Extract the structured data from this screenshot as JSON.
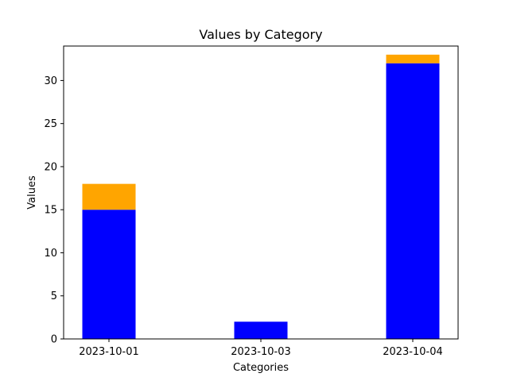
{
  "chart_data": {
    "type": "bar",
    "stacked": true,
    "title": "Values by Category",
    "xlabel": "Categories",
    "ylabel": "Values",
    "categories": [
      "2023-10-01",
      "2023-10-03",
      "2023-10-04"
    ],
    "series": [
      {
        "values": [
          15,
          2,
          32
        ],
        "color": "#0000ff"
      },
      {
        "values": [
          3,
          0,
          1
        ],
        "color": "#ffa500"
      }
    ],
    "ylim": [
      0,
      34
    ],
    "yticks": [
      0,
      5,
      10,
      15,
      20,
      25,
      30
    ],
    "grid": false,
    "legend": "none"
  }
}
